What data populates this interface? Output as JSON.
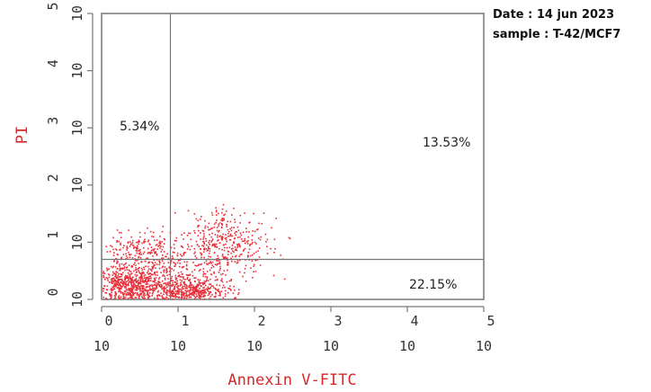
{
  "meta": {
    "date": "Date : 14 jun 2023",
    "sample": "sample : T-42/MCF7"
  },
  "chart_data": {
    "type": "scatter",
    "xlabel": "Annexin V-FITC",
    "ylabel": "PI",
    "x_scale": "log",
    "y_scale": "log",
    "xlim_decades": [
      0,
      5
    ],
    "ylim_decades": [
      0,
      5
    ],
    "x_ticks": [
      {
        "base": "10",
        "exp": "0"
      },
      {
        "base": "10",
        "exp": "1"
      },
      {
        "base": "10",
        "exp": "2"
      },
      {
        "base": "10",
        "exp": "3"
      },
      {
        "base": "10",
        "exp": "4"
      },
      {
        "base": "10",
        "exp": "5"
      }
    ],
    "y_ticks": [
      {
        "base": "10",
        "exp": "0"
      },
      {
        "base": "10",
        "exp": "1"
      },
      {
        "base": "10",
        "exp": "2"
      },
      {
        "base": "10",
        "exp": "3"
      },
      {
        "base": "10",
        "exp": "4"
      },
      {
        "base": "10",
        "exp": "5"
      }
    ],
    "gate": {
      "x_decade": 0.9,
      "y_decade": 0.7
    },
    "quadrants": {
      "upper_left": "5.34%",
      "upper_right": "13.53%",
      "lower_right": "22.15%"
    },
    "point_color": "#e8303a",
    "axis_label_color": "#d42a2a",
    "clusters": [
      {
        "cx": 0.35,
        "cy": 0.25,
        "sx": 0.25,
        "sy": 0.18,
        "n": 700
      },
      {
        "cx": 1.15,
        "cy": 0.15,
        "sx": 0.25,
        "sy": 0.12,
        "n": 500
      },
      {
        "cx": 1.6,
        "cy": 1.0,
        "sx": 0.3,
        "sy": 0.28,
        "n": 350
      },
      {
        "cx": 0.45,
        "cy": 0.9,
        "sx": 0.25,
        "sy": 0.15,
        "n": 120
      },
      {
        "cx": 0.9,
        "cy": 0.6,
        "sx": 0.45,
        "sy": 0.25,
        "n": 300
      }
    ]
  }
}
